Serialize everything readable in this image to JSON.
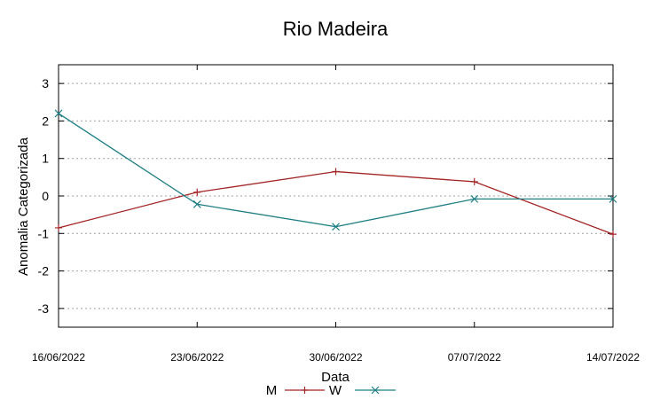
{
  "chart_data": {
    "type": "line",
    "title": "Rio Madeira",
    "xlabel": "Data",
    "ylabel": "Anomalia Categorizada",
    "categories": [
      "16/06/2022",
      "23/06/2022",
      "30/06/2022",
      "07/07/2022",
      "14/07/2022"
    ],
    "yticks": [
      -3,
      -2,
      -1,
      0,
      1,
      2,
      3
    ],
    "ylim": [
      -3.5,
      3.5
    ],
    "grid": "horizontal dashed",
    "legend_position": "bottom",
    "series": [
      {
        "name": "M",
        "marker": "+",
        "color": "#a32424",
        "values": [
          -0.85,
          0.1,
          0.65,
          0.38,
          -1.02
        ]
      },
      {
        "name": "W",
        "marker": "x",
        "color": "#1f7f85",
        "values": [
          2.2,
          -0.22,
          -0.82,
          -0.08,
          -0.08
        ]
      }
    ]
  }
}
